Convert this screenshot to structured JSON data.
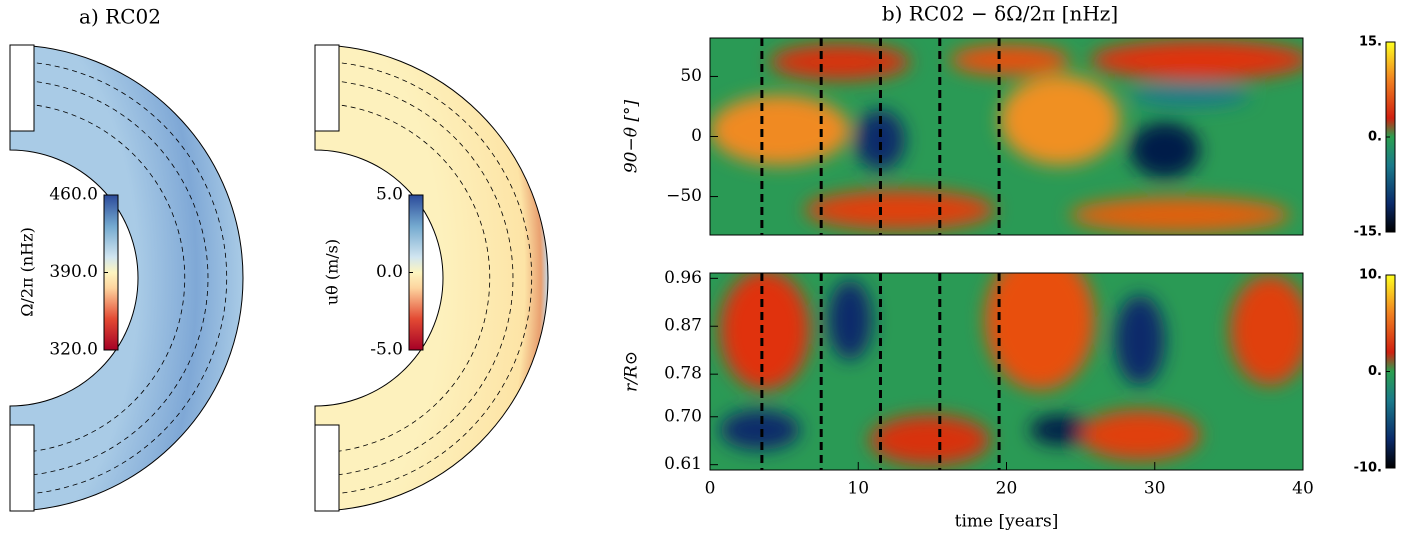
{
  "chart_data": [
    {
      "type": "meridional",
      "title": "a) RC02",
      "colorbar_label": "Ω/2π (nHz)",
      "colorbar_lim": [
        320,
        460
      ],
      "colorbar_ticks": [
        {
          "value": 460,
          "label": "460.0"
        },
        {
          "value": 390,
          "label": "390.0"
        },
        {
          "value": 320,
          "label": "320.0"
        }
      ]
    },
    {
      "type": "meridional",
      "colorbar_label": "uθ (m/s)",
      "colorbar_lim": [
        -5,
        5
      ],
      "colorbar_ticks": [
        {
          "value": 5,
          "label": "5.0"
        },
        {
          "value": 0,
          "label": "0.0"
        },
        {
          "value": -5,
          "label": "-5.0"
        }
      ]
    },
    {
      "type": "heatmap",
      "title": "b) RC02 − δΩ/2π [nHz]",
      "ylabel": "90−θ [°]",
      "xlim": [
        0,
        40
      ],
      "ylim": [
        -82,
        82
      ],
      "yticks": [
        50,
        0,
        {
          "value": -50,
          "label": "−50"
        }
      ],
      "cycle_lines_x": [
        3.5,
        7.5,
        11.5,
        15.5,
        19.5
      ],
      "colorbar_lim": [
        -15,
        15
      ],
      "colorbar_ticks": [
        {
          "value": 15,
          "label": "15."
        },
        {
          "value": 0,
          "label": "0."
        },
        {
          "value": -15,
          "label": "-15."
        }
      ]
    },
    {
      "type": "heatmap",
      "ylabel": "r/R⊙",
      "xlabel": "time [years]",
      "xlim": [
        0,
        40
      ],
      "xticks": [
        0,
        10,
        20,
        30,
        40
      ],
      "ylim": [
        0.6,
        0.97
      ],
      "yticks": [
        0.96,
        0.87,
        0.78,
        {
          "value": 0.7,
          "label": "0.70"
        },
        0.61
      ],
      "cycle_lines_x": [
        3.5,
        7.5,
        11.5,
        15.5,
        19.5
      ],
      "colorbar_lim": [
        -10,
        10
      ],
      "colorbar_ticks": [
        {
          "value": 10,
          "label": "10."
        },
        {
          "value": 0,
          "label": "0."
        },
        {
          "value": -10,
          "label": "-10."
        }
      ]
    }
  ]
}
